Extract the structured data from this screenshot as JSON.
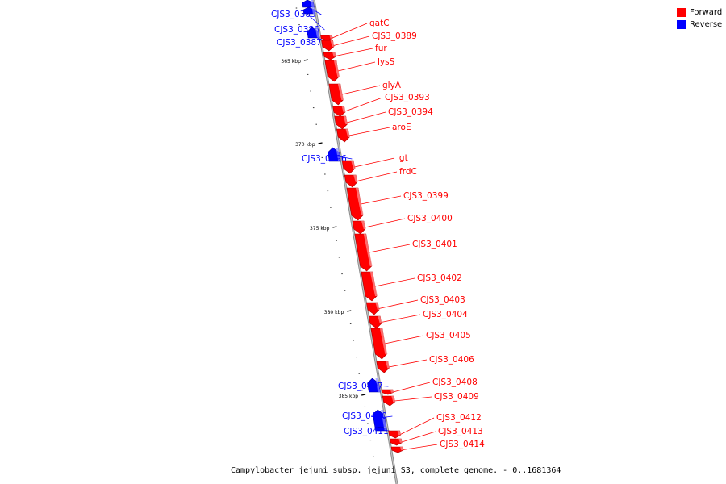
{
  "legend": {
    "forward_label": "Forward",
    "reverse_label": "Reverse",
    "forward_color": "#ff0000",
    "reverse_color": "#0000ff"
  },
  "caption": "Campylobacter jejuni subsp. jejuni S3, complete genome. - 0..1681364",
  "axis": {
    "unit_label": "kbp"
  },
  "ruler_ticks": [
    "365 kbp",
    "370 kbp",
    "375 kbp",
    "380 kbp",
    "385 kbp"
  ],
  "genes": [
    {
      "name": "CJS3_0385",
      "strand": "reverse"
    },
    {
      "name": "CJS3_0386",
      "strand": "reverse"
    },
    {
      "name": "CJS3_0387",
      "strand": "reverse"
    },
    {
      "name": "gatC",
      "strand": "forward"
    },
    {
      "name": "CJS3_0389",
      "strand": "forward"
    },
    {
      "name": "fur",
      "strand": "forward"
    },
    {
      "name": "lysS",
      "strand": "forward"
    },
    {
      "name": "glyA",
      "strand": "forward"
    },
    {
      "name": "CJS3_0393",
      "strand": "forward"
    },
    {
      "name": "CJS3_0394",
      "strand": "forward"
    },
    {
      "name": "aroE",
      "strand": "forward"
    },
    {
      "name": "CJS3_0396",
      "strand": "reverse"
    },
    {
      "name": "lgt",
      "strand": "forward"
    },
    {
      "name": "frdC",
      "strand": "forward"
    },
    {
      "name": "CJS3_0399",
      "strand": "forward"
    },
    {
      "name": "CJS3_0400",
      "strand": "forward"
    },
    {
      "name": "CJS3_0401",
      "strand": "forward"
    },
    {
      "name": "CJS3_0402",
      "strand": "forward"
    },
    {
      "name": "CJS3_0403",
      "strand": "forward"
    },
    {
      "name": "CJS3_0404",
      "strand": "forward"
    },
    {
      "name": "CJS3_0405",
      "strand": "forward"
    },
    {
      "name": "CJS3_0406",
      "strand": "forward"
    },
    {
      "name": "CJS3_0407",
      "strand": "reverse"
    },
    {
      "name": "CJS3_0408",
      "strand": "forward"
    },
    {
      "name": "CJS3_0409",
      "strand": "forward"
    },
    {
      "name": "CJS3_0410",
      "strand": "reverse"
    },
    {
      "name": "CJS3_0411",
      "strand": "reverse"
    },
    {
      "name": "CJS3_0412",
      "strand": "forward"
    },
    {
      "name": "CJS3_0413",
      "strand": "forward"
    },
    {
      "name": "CJS3_0414",
      "strand": "forward"
    }
  ]
}
